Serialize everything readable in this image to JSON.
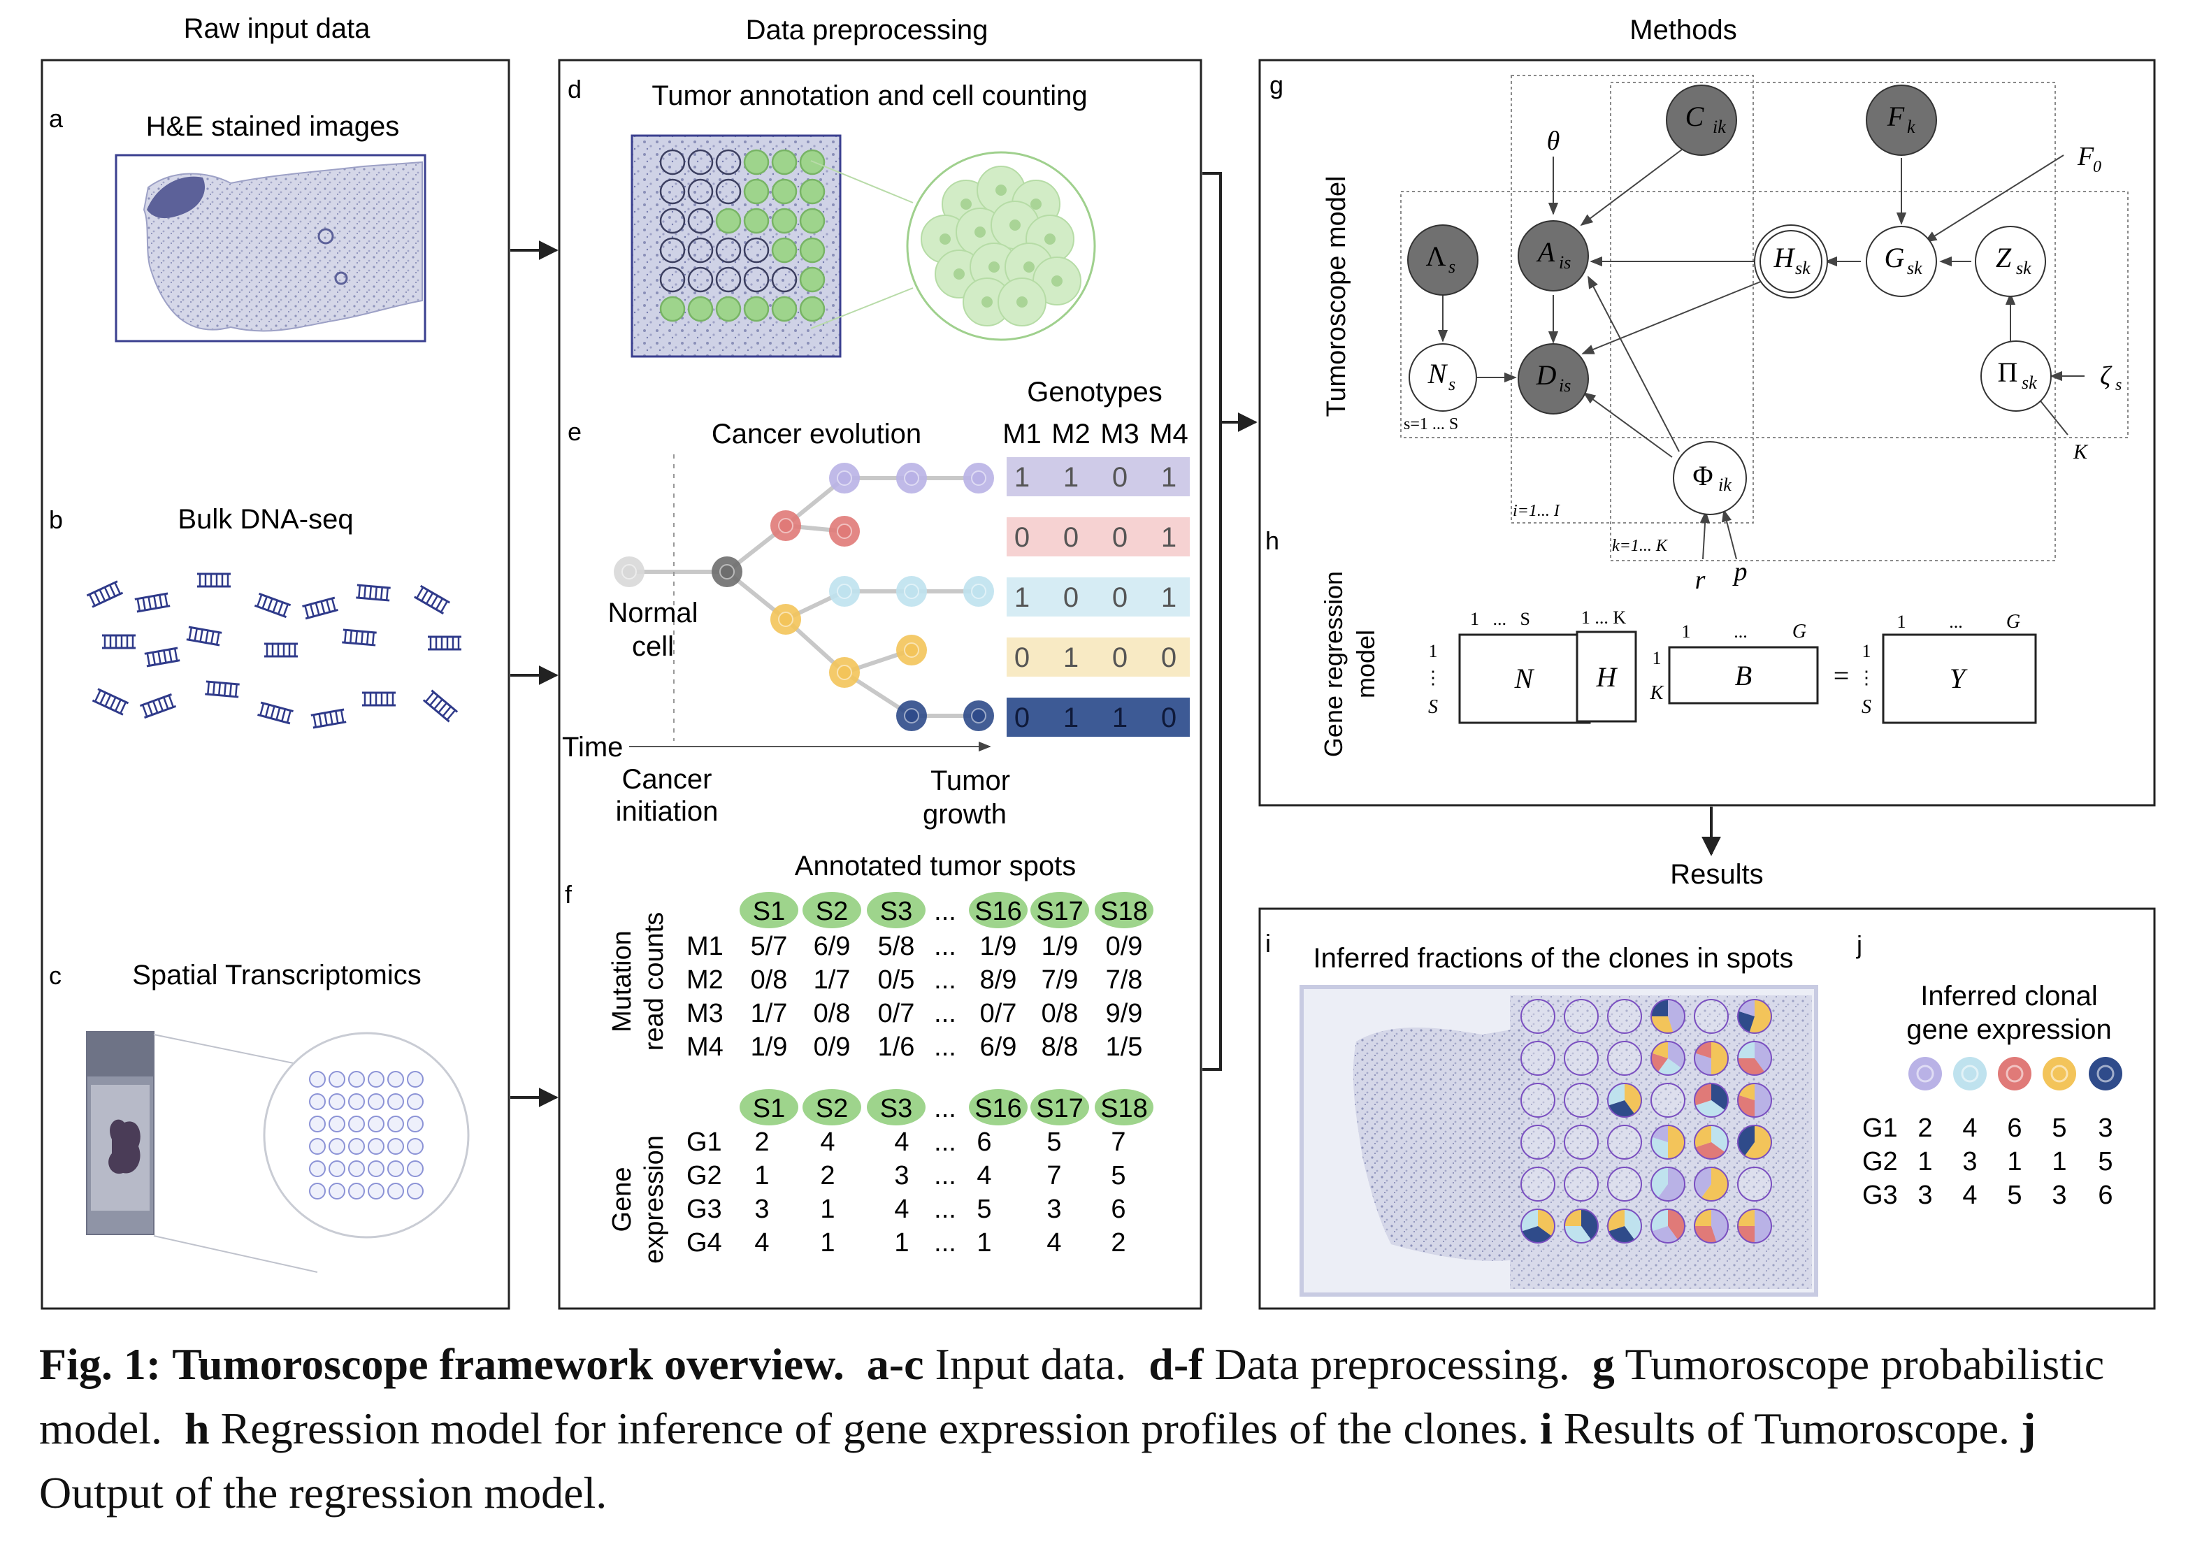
{
  "columns": {
    "raw": "Raw input data",
    "prep": "Data preprocessing",
    "methods": "Methods",
    "results": "Results"
  },
  "panels": {
    "a": {
      "letter": "a",
      "title": "H&E stained images"
    },
    "b": {
      "letter": "b",
      "title": "Bulk DNA-seq"
    },
    "c": {
      "letter": "c",
      "title": "Spatial Transcriptomics"
    },
    "d": {
      "letter": "d",
      "title": "Tumor annotation and cell counting"
    },
    "e": {
      "letter": "e",
      "title": "Cancer evolution",
      "normal_line1": "Normal",
      "normal_line2": "cell",
      "time": "Time",
      "initiation_line1": "Cancer",
      "initiation_line2": "initiation",
      "growth_line1": "Tumor",
      "growth_line2": "growth",
      "genotypes_title": "Genotypes",
      "genotype_headers": [
        "M1",
        "M2",
        "M3",
        "M4"
      ],
      "genotype_rows": [
        {
          "values": [
            "1",
            "1",
            "0",
            "1"
          ],
          "color": "#cfcbe8",
          "node": "#b9b2e6"
        },
        {
          "values": [
            "0",
            "0",
            "0",
            "1"
          ],
          "color": "#f6d2d2",
          "node": "#e07a78"
        },
        {
          "values": [
            "1",
            "0",
            "0",
            "1"
          ],
          "color": "#d6ecf4",
          "node": "#bfe2ee"
        },
        {
          "values": [
            "0",
            "1",
            "0",
            "0"
          ],
          "color": "#f8eac4",
          "node": "#f3c45a"
        },
        {
          "values": [
            "0",
            "1",
            "1",
            "0"
          ],
          "color": "#3d5a95",
          "node": "#2f4b8a"
        }
      ]
    },
    "f": {
      "letter": "f",
      "title": "Annotated tumor spots",
      "spot_headers": [
        "S1",
        "S2",
        "S3",
        "...",
        "S16",
        "S17",
        "S18"
      ],
      "mutation_label_line1": "Mutation",
      "mutation_label_line2": "read counts",
      "mutation_rows": [
        {
          "name": "M1",
          "values": [
            "5/7",
            "6/9",
            "5/8",
            "...",
            "1/9",
            "1/9",
            "0/9"
          ]
        },
        {
          "name": "M2",
          "values": [
            "0/8",
            "1/7",
            "0/5",
            "...",
            "8/9",
            "7/9",
            "7/8"
          ]
        },
        {
          "name": "M3",
          "values": [
            "1/7",
            "0/8",
            "0/7",
            "...",
            "0/7",
            "0/8",
            "9/9"
          ]
        },
        {
          "name": "M4",
          "values": [
            "1/9",
            "0/9",
            "1/6",
            "...",
            "6/9",
            "8/8",
            "1/5"
          ]
        }
      ],
      "gene_label_line1": "Gene",
      "gene_label_line2": "expression",
      "gene_rows": [
        {
          "name": "G1",
          "values": [
            "2",
            "4",
            "4",
            "...",
            "6",
            "5",
            "7"
          ]
        },
        {
          "name": "G2",
          "values": [
            "1",
            "2",
            "3",
            "...",
            "4",
            "7",
            "5"
          ]
        },
        {
          "name": "G3",
          "values": [
            "3",
            "1",
            "4",
            "...",
            "5",
            "3",
            "6"
          ]
        },
        {
          "name": "G4",
          "values": [
            "4",
            "1",
            "1",
            "...",
            "1",
            "4",
            "2"
          ]
        }
      ]
    },
    "g": {
      "letter": "g",
      "side_label": "Tumoroscope model",
      "nodes": {
        "C": "C",
        "C_sub": "ik",
        "F": "F",
        "F_sub": "k",
        "theta": "θ",
        "F0": "F",
        "F0_sub": "0",
        "A": "A",
        "A_sub": "is",
        "H": "H",
        "H_sub": "sk",
        "G": "G",
        "G_sub": "sk",
        "Z": "Z",
        "Z_sub": "sk",
        "Lambda": "Λ",
        "Lambda_sub": "s",
        "N": "N",
        "N_sub": "s",
        "D": "D",
        "D_sub": "is",
        "Pi": "Π",
        "Pi_sub": "sk",
        "zeta": "ζ",
        "zeta_sub": "s",
        "Phi": "Φ",
        "Phi_sub": "ik",
        "r": "r",
        "p": "p"
      },
      "plates": {
        "s": "s=1 ... S",
        "i": "i=1... I",
        "k": "k=1... K",
        "K": "K"
      }
    },
    "h": {
      "letter": "h",
      "side_label_line1": "Gene regression",
      "side_label_line2": "model",
      "N_label": "N",
      "N_top": "1   ...   S",
      "N_left_top": "1",
      "N_left_mid": "⋮",
      "N_left_bot": "S",
      "H_label": "H",
      "H_top": "1 ... K",
      "B_label": "B",
      "B_top_1": "1",
      "B_top_mid": "...",
      "B_top_end": "G",
      "B_left_top": "1",
      "B_left_bot": "K",
      "equals": "=",
      "Y_label": "Y",
      "Y_top_1": "1",
      "Y_top_mid": "...",
      "Y_top_end": "G",
      "Y_left_top": "1",
      "Y_left_mid": "⋮",
      "Y_left_bot": "S"
    },
    "i": {
      "letter": "i",
      "title": "Inferred fractions of the clones in spots"
    },
    "j": {
      "letter": "j",
      "title_line1": "Inferred clonal",
      "title_line2": "gene expression",
      "clone_colors": [
        "#b9b2e6",
        "#bfe2ee",
        "#e07a78",
        "#f3c45a",
        "#2f4b8a"
      ],
      "rows": [
        {
          "name": "G1",
          "values": [
            "2",
            "4",
            "6",
            "5",
            "3"
          ]
        },
        {
          "name": "G2",
          "values": [
            "1",
            "3",
            "1",
            "1",
            "5"
          ]
        },
        {
          "name": "G3",
          "values": [
            "3",
            "4",
            "5",
            "3",
            "6"
          ]
        }
      ]
    }
  },
  "caption": {
    "fig": "Fig. 1:",
    "title": "Tumoroscope framework overview.",
    "ac_bold": "a-c",
    "ac_text": "Input data.",
    "df_bold": "d-f",
    "df_text": "Data preprocessing.",
    "g_bold": "g",
    "g_text": "Tumoroscope probabilistic model.",
    "h_bold": "h",
    "h_text": "Regression model for inference of gene expression profiles of the clones.",
    "i_bold": "i",
    "i_text": "Results of Tumoroscope.",
    "j_bold": "j",
    "j_text": "Output of the regression model."
  }
}
